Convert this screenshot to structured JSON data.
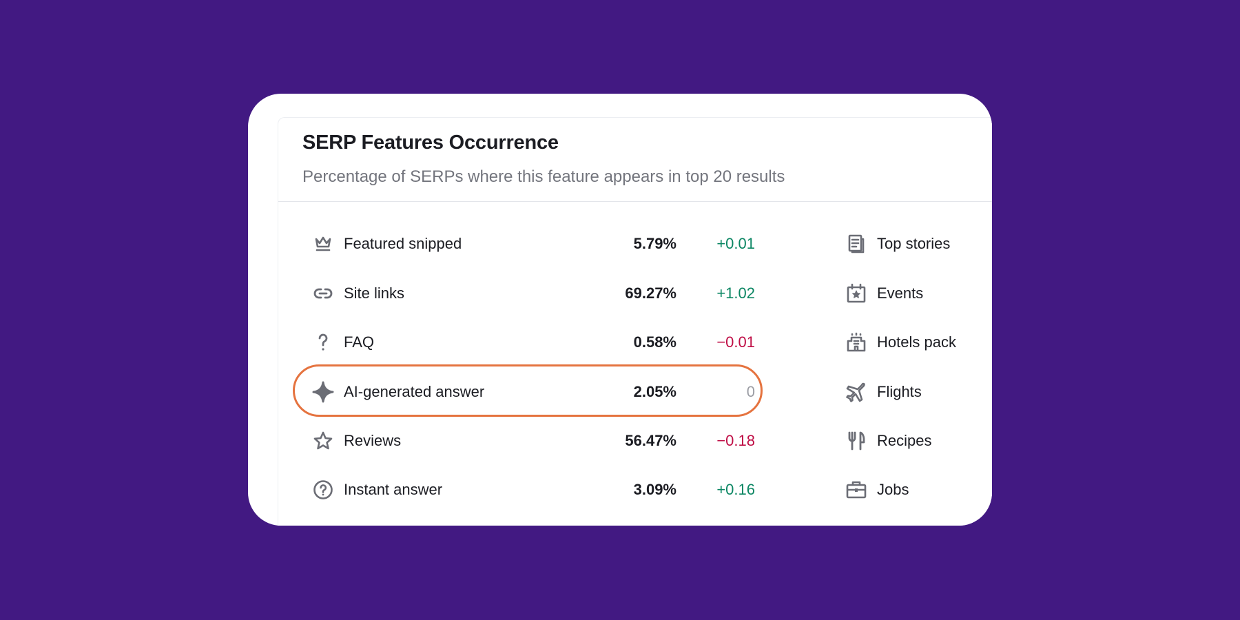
{
  "card": {
    "title": "SERP Features Occurrence",
    "subtitle": "Percentage of SERPs where this feature appears in top 20 results"
  },
  "features_left": [
    {
      "icon": "crown-icon",
      "label": "Featured snipped",
      "value": "5.79%",
      "delta": "+0.01",
      "trend": "positive"
    },
    {
      "icon": "link-icon",
      "label": "Site links",
      "value": "69.27%",
      "delta": "+1.02",
      "trend": "positive"
    },
    {
      "icon": "question-mark-icon",
      "label": "FAQ",
      "value": "0.58%",
      "delta": "−0.01",
      "trend": "negative"
    },
    {
      "icon": "sparkle-icon",
      "label": "AI-generated answer",
      "value": "2.05%",
      "delta": "0",
      "trend": "neutral"
    },
    {
      "icon": "star-icon",
      "label": "Reviews",
      "value": "56.47%",
      "delta": "−0.18",
      "trend": "negative"
    },
    {
      "icon": "question-circle-icon",
      "label": "Instant answer",
      "value": "3.09%",
      "delta": "+0.16",
      "trend": "positive"
    }
  ],
  "features_right": [
    {
      "icon": "newspaper-icon",
      "label": "Top stories"
    },
    {
      "icon": "calendar-star-icon",
      "label": "Events"
    },
    {
      "icon": "hotel-icon",
      "label": "Hotels pack"
    },
    {
      "icon": "airplane-icon",
      "label": "Flights"
    },
    {
      "icon": "fork-knife-icon",
      "label": "Recipes"
    },
    {
      "icon": "briefcase-icon",
      "label": "Jobs"
    }
  ],
  "colors": {
    "background": "#421982",
    "positive": "#0b8663",
    "negative": "#bf0d45",
    "neutral": "#9b9da4",
    "highlight": "#e5733f"
  }
}
